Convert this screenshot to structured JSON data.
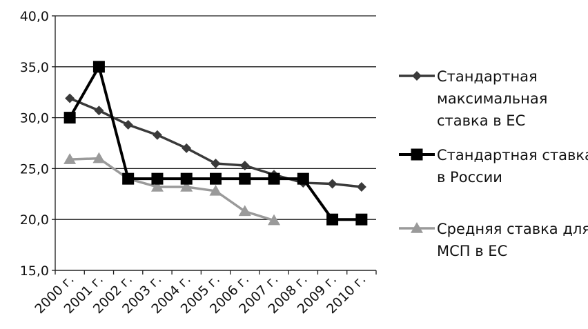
{
  "chart_data": {
    "type": "line",
    "categories": [
      "2000 г.",
      "2001 г.",
      "2002 г.",
      "2003 г.",
      "2004 г.",
      "2005 г.",
      "2006 г.",
      "2007 г.",
      "2008 г.",
      "2009 г.",
      "2010 г."
    ],
    "ylim": [
      15,
      40
    ],
    "yticks": [
      "15,0",
      "20,0",
      "25,0",
      "30,0",
      "35,0",
      "40,0"
    ],
    "grid": "horizontal",
    "legend_position": "right",
    "series": [
      {
        "name": "Стандартная максимальная ставка в ЕС",
        "legend_lines": [
          "Стандартная",
          "максимальная",
          "ставка в ЕС"
        ],
        "marker": "diamond",
        "color": "#3a3a3a",
        "values": [
          31.9,
          30.7,
          29.3,
          28.3,
          27.0,
          25.5,
          25.3,
          24.4,
          23.6,
          23.5,
          23.2
        ]
      },
      {
        "name": "Стандартная ставка в России",
        "legend_lines": [
          "Стандартная ставка",
          "в России"
        ],
        "marker": "square",
        "color": "#000000",
        "values": [
          30.0,
          35.0,
          24.0,
          24.0,
          24.0,
          24.0,
          24.0,
          24.0,
          24.0,
          20.0,
          20.0
        ]
      },
      {
        "name": "Средняя ставка для МСП в ЕС",
        "legend_lines": [
          "Средняя ставка для",
          "МСП в ЕС"
        ],
        "marker": "triangle",
        "color": "#9a9a9a",
        "values": [
          25.9,
          26.0,
          24.0,
          23.2,
          23.2,
          22.8,
          20.8,
          19.9,
          null,
          null,
          null
        ]
      }
    ]
  }
}
